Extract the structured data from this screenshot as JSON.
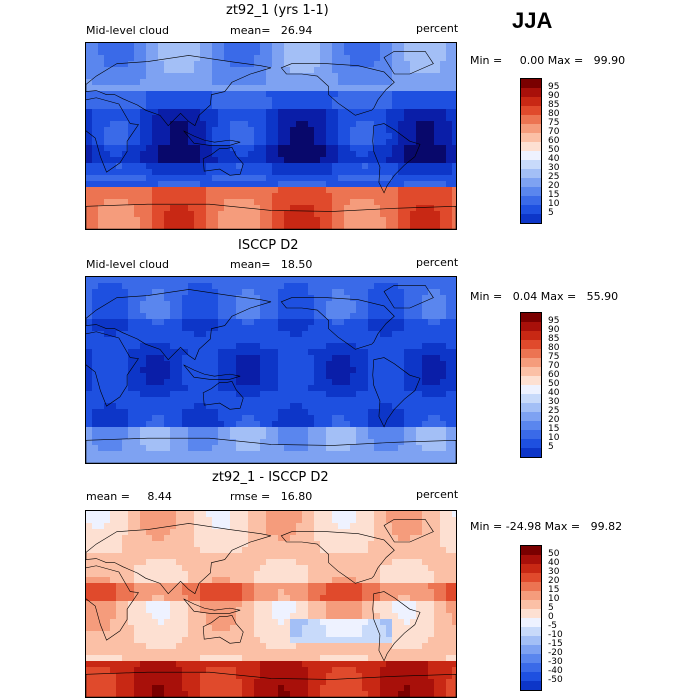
{
  "season": "JJA",
  "colors": {
    "cloud_scale": [
      "#08086b",
      "#0a1ea8",
      "#0d36c8",
      "#1e50e0",
      "#3a6ae8",
      "#5a86ee",
      "#7ea2f2",
      "#a3bff6",
      "#c8dafa",
      "#eef2ff",
      "#fde0d2",
      "#fbc0a6",
      "#f59c7c",
      "#ec7452",
      "#e04a2c",
      "#c82814",
      "#a8100a",
      "#7a0000"
    ],
    "diff_scale": [
      "#08086b",
      "#0a1ea8",
      "#0d36c8",
      "#1e50e0",
      "#3a6ae8",
      "#5a86ee",
      "#7ea2f2",
      "#a3bff6",
      "#c8dafa",
      "#eef2ff",
      "#fde0d2",
      "#fbc0a6",
      "#f59c7c",
      "#ec7452",
      "#e04a2c",
      "#c82814",
      "#a8100a",
      "#7a0000"
    ]
  },
  "panels": [
    {
      "title": "zt92_1 (yrs 1-1)",
      "left": "Mid-level cloud",
      "mean": "mean=   26.94",
      "units": "percent",
      "minmax": "Min =     0.00 Max =   99.90",
      "labels": [
        "95",
        "90",
        "85",
        "80",
        "75",
        "70",
        "60",
        "50",
        "40",
        "30",
        "25",
        "20",
        "15",
        "10",
        "5"
      ],
      "map_style": "model"
    },
    {
      "title": "ISCCP D2",
      "left": "Mid-level cloud",
      "mean": "mean=   18.50",
      "units": "percent",
      "minmax": "Min =   0.04 Max =   55.90",
      "labels": [
        "95",
        "90",
        "85",
        "80",
        "75",
        "70",
        "60",
        "50",
        "40",
        "30",
        "25",
        "20",
        "15",
        "10",
        "5"
      ],
      "map_style": "obs"
    },
    {
      "title": "zt92_1 - ISCCP D2",
      "left": "mean =     8.44",
      "mean": "rmse =   16.80",
      "units": "percent",
      "minmax": "Min = -24.98 Max =   99.82",
      "labels": [
        "50",
        "40",
        "30",
        "20",
        "15",
        "10",
        "5",
        "0",
        "-5",
        "-10",
        "-15",
        "-20",
        "-30",
        "-40",
        "-50"
      ],
      "map_style": "diff"
    }
  ]
}
